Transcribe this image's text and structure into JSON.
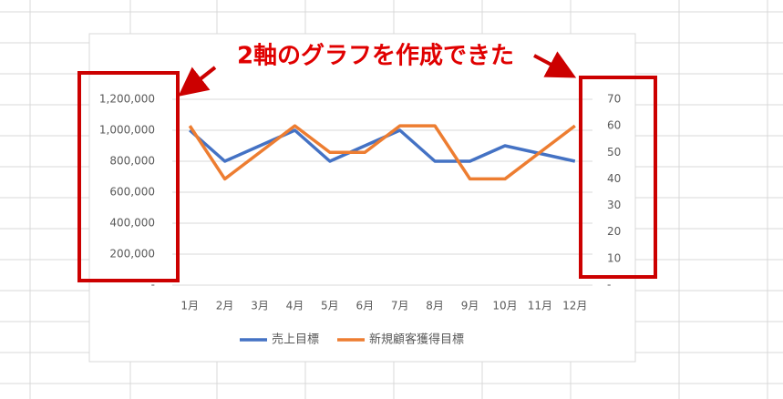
{
  "chart_data": {
    "type": "line",
    "annotation": "2軸のグラフを作成できた",
    "categories": [
      "1月",
      "2月",
      "3月",
      "4月",
      "5月",
      "6月",
      "7月",
      "8月",
      "9月",
      "10月",
      "11月",
      "12月"
    ],
    "series": [
      {
        "name": "売上目標",
        "color": "#4472c4",
        "values": [
          1000000,
          800000,
          900000,
          1000000,
          800000,
          900000,
          1000000,
          800000,
          800000,
          900000,
          850000,
          800000
        ]
      },
      {
        "name": "新規顧客獲得目標",
        "color": "#ed7d31",
        "axis": "y2",
        "values": [
          60,
          40,
          50,
          60,
          50,
          50,
          60,
          60,
          40,
          40,
          50,
          60
        ]
      }
    ],
    "ylim": [
      0,
      1200000
    ],
    "yticks": [
      {
        "value": 0,
        "label": "-"
      },
      {
        "value": 200000,
        "label": "200,000"
      },
      {
        "value": 400000,
        "label": "400,000"
      },
      {
        "value": 600000,
        "label": "600,000"
      },
      {
        "value": 800000,
        "label": "800,000"
      },
      {
        "value": 1000000,
        "label": "1,000,000"
      },
      {
        "value": 1200000,
        "label": "1,200,000"
      }
    ],
    "y2lim": [
      0,
      70
    ],
    "y2ticks": [
      {
        "value": 0,
        "label": "-"
      },
      10,
      20,
      30,
      40,
      50,
      60,
      70
    ],
    "grid": true,
    "legend": "bottom"
  }
}
